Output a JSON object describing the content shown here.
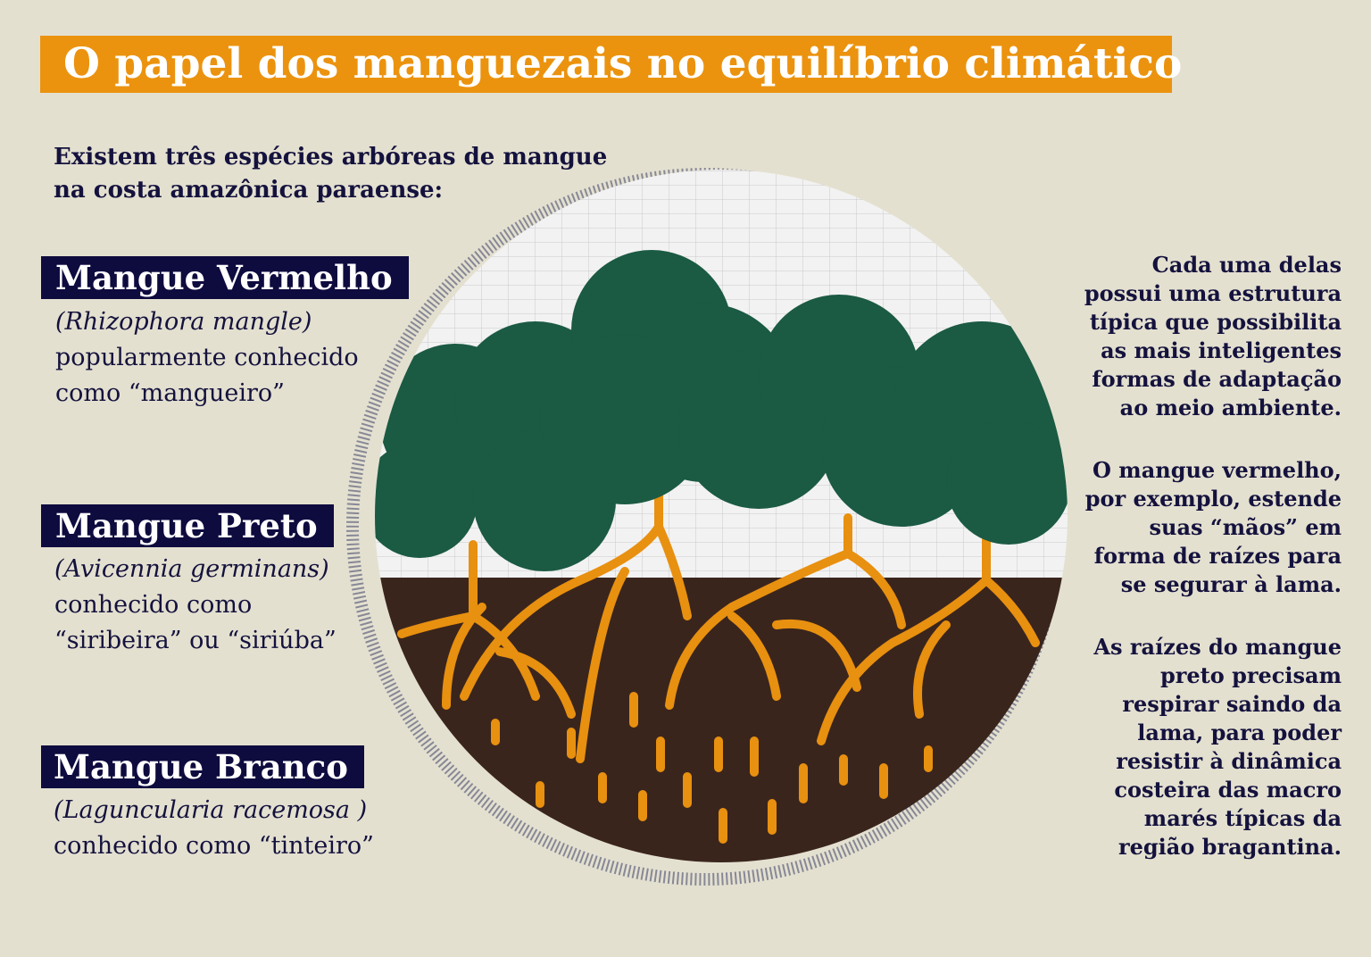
{
  "title": "O papel dos manguezais no equilíbrio climático",
  "intro": [
    "Existem três espécies arbóreas de mangue",
    "na costa amazônica paraense:"
  ],
  "species": [
    {
      "name": "Mangue Vermelho",
      "scientific": "(Rhizophora mangle)",
      "lines": [
        "popularmente conhecido",
        "como “mangueiro”"
      ]
    },
    {
      "name": "Mangue Preto",
      "scientific": "(Avicennia germinans)",
      "lines": [
        "conhecido como",
        "“siribeira” ou “siriúba”"
      ]
    },
    {
      "name": "Mangue Branco",
      "scientific": "(Laguncularia racemosa )",
      "lines": [
        "conhecido como “tinteiro”"
      ]
    }
  ],
  "notes": [
    [
      "Cada uma delas",
      "possui uma estrutura",
      "típica que possibilita",
      "as mais inteligentes",
      "formas de adaptação",
      "ao meio ambiente."
    ],
    [
      "O mangue vermelho,",
      "por exemplo, estende",
      "suas “mãos” em",
      "forma de raízes para",
      "se segurar à lama."
    ],
    [
      "As raízes do mangue",
      "preto precisam",
      "respirar saindo da",
      "lama, para poder",
      "resistir à dinâmica",
      "costeira das macro",
      "marés típicas da",
      "região bragantina."
    ]
  ],
  "colors": {
    "title_bg": "#eb930f",
    "label_bg": "#0e0b3f",
    "tree": "#1b5a43",
    "root": "#e8900f",
    "mud": "#3a251d",
    "background": "#e4e0d0"
  }
}
